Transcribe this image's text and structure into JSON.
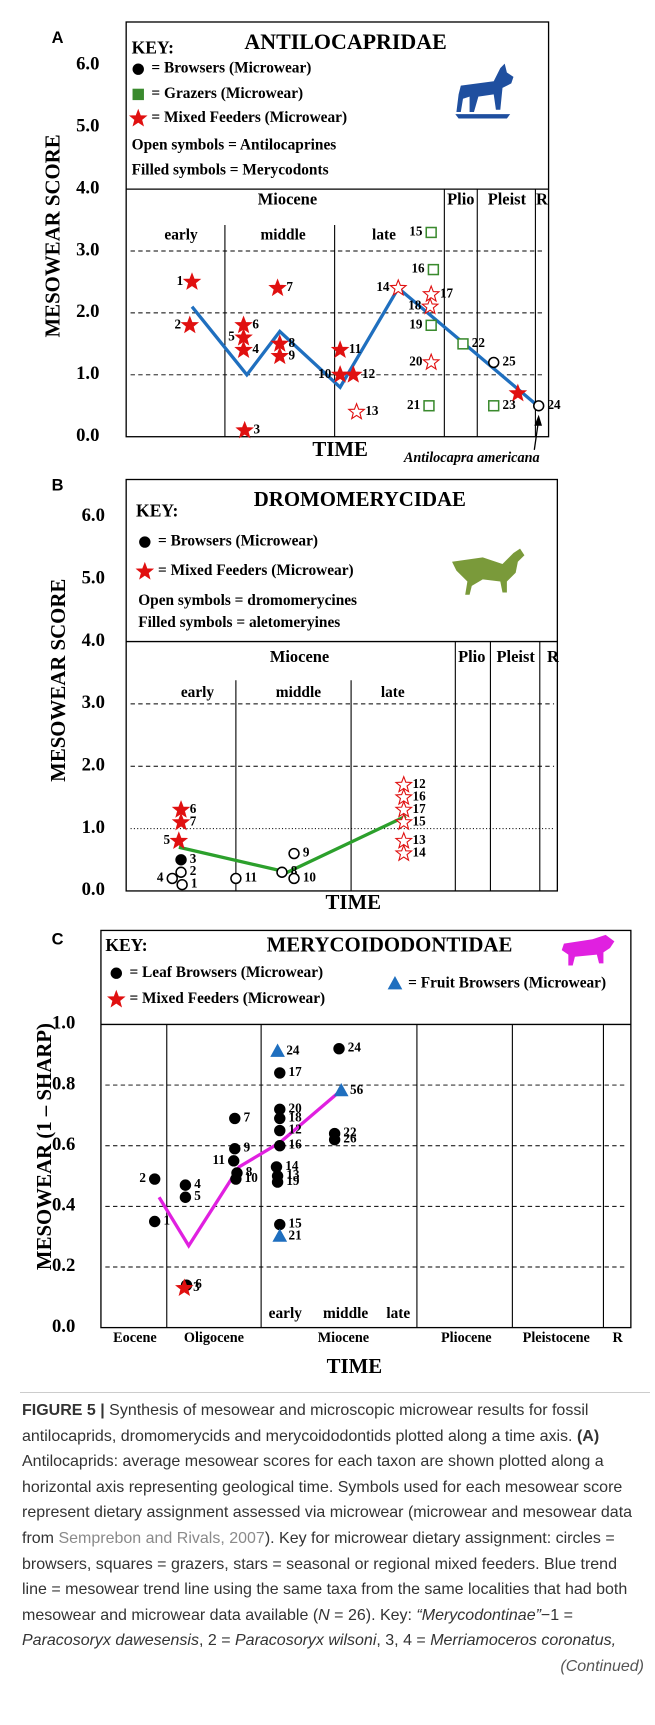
{
  "chart_data": [
    {
      "type": "scatter",
      "panel_label": "A",
      "title": "ANTILOCAPRIDAE",
      "key_title": "KEY:",
      "key_notes": [
        "Open symbols = Antilocaprines",
        "Filled symbols = Merycodonts"
      ],
      "y_label": "MESOWEAR  SCORE",
      "x_label": "TIME",
      "epochs": [
        "Miocene",
        "Plio",
        "Pleist",
        "R"
      ],
      "stages": [
        "early",
        "middle",
        "late"
      ],
      "ylim": [
        0,
        6.7
      ],
      "yticks": [
        {
          "value": 0,
          "label": "0.0"
        },
        {
          "value": 1,
          "label": "1.0",
          "grid": "dashed"
        },
        {
          "value": 2,
          "label": "2.0",
          "grid": "dashed"
        },
        {
          "value": 3,
          "label": "3.0",
          "grid": "dashed"
        },
        {
          "value": 4,
          "label": "4.0",
          "grid": "solid"
        },
        {
          "value": 5,
          "label": "5.0"
        },
        {
          "value": 6,
          "label": "6.0"
        }
      ],
      "series": [
        {
          "name": "= Browsers (Microwear)",
          "marker": "circle",
          "color": "#000000",
          "labels": [
            "24",
            "25"
          ],
          "values": [
            0.5,
            1.2
          ],
          "filled": [
            false,
            false
          ]
        },
        {
          "name": "= Grazers (Microwear)",
          "marker": "square",
          "color": "#3a8a2e",
          "labels": [
            "15",
            "16",
            "19",
            "21",
            "22",
            "23"
          ],
          "values": [
            3.3,
            2.7,
            1.8,
            0.5,
            1.5,
            0.5
          ],
          "filled": [
            false,
            false,
            false,
            false,
            false,
            false
          ]
        },
        {
          "name": "= Mixed Feeders (Microwear)",
          "marker": "star",
          "color": "#e01010",
          "labels": [
            "1",
            "2",
            "3",
            "4",
            "5",
            "6",
            "7",
            "8",
            "9",
            "10",
            "11",
            "12",
            "13",
            "14",
            "17",
            "18",
            "20",
            null
          ],
          "values": [
            2.5,
            1.8,
            0.1,
            1.4,
            1.6,
            1.8,
            2.4,
            1.5,
            1.3,
            1.0,
            1.4,
            1.0,
            0.4,
            2.4,
            2.3,
            2.1,
            1.2,
            0.7
          ],
          "filled": [
            true,
            true,
            true,
            true,
            true,
            true,
            true,
            true,
            true,
            true,
            true,
            true,
            false,
            false,
            false,
            false,
            false,
            true
          ]
        }
      ],
      "trend": {
        "color": "#1f6fbf",
        "values": [
          2.1,
          1.0,
          1.7,
          0.8,
          2.4,
          1.4,
          0.5
        ]
      },
      "annotation": "Antilocapra americana"
    },
    {
      "type": "scatter",
      "panel_label": "B",
      "title": "DROMOMERYCIDAE",
      "key_title": "KEY:",
      "key_notes": [
        "Open symbols = dromomerycines",
        "Filled symbols = aletomeryines"
      ],
      "y_label": "MESOWEAR  SCORE",
      "x_label": "TIME",
      "epochs": [
        "Miocene",
        "Plio",
        "Pleist",
        "R"
      ],
      "stages": [
        "early",
        "middle",
        "late"
      ],
      "ylim": [
        0,
        6.6
      ],
      "yticks": [
        {
          "value": 0,
          "label": "0.0"
        },
        {
          "value": 1,
          "label": "1.0",
          "grid": "dotted"
        },
        {
          "value": 2,
          "label": "2.0",
          "grid": "dashed"
        },
        {
          "value": 3,
          "label": "3.0",
          "grid": "dashed"
        },
        {
          "value": 4,
          "label": "4.0",
          "grid": "solid"
        },
        {
          "value": 5,
          "label": "5.0"
        },
        {
          "value": 6,
          "label": "6.0"
        }
      ],
      "series": [
        {
          "name": "= Browsers (Microwear)",
          "marker": "circle",
          "color": "#000000",
          "labels": [
            "3",
            "2",
            "4",
            "1",
            "11",
            "9",
            "8",
            "10"
          ],
          "values": [
            0.5,
            0.3,
            0.2,
            0.1,
            0.2,
            0.6,
            0.3,
            0.2
          ],
          "filled": [
            true,
            false,
            false,
            false,
            false,
            false,
            false,
            false
          ]
        },
        {
          "name": "= Mixed Feeders (Microwear)",
          "marker": "star",
          "color": "#e01010",
          "labels": [
            "6",
            "7",
            "5",
            "12",
            "16",
            "17",
            "15",
            "13",
            "14"
          ],
          "values": [
            1.3,
            1.1,
            0.8,
            1.7,
            1.5,
            1.3,
            1.1,
            0.8,
            0.6
          ],
          "filled": [
            true,
            true,
            true,
            false,
            false,
            false,
            false,
            false,
            false
          ]
        }
      ],
      "trend": {
        "color": "#2ca02c",
        "values": [
          0.7,
          0.3,
          1.2
        ]
      }
    },
    {
      "type": "scatter",
      "panel_label": "C",
      "title": "MERYCOIDODONTIDAE",
      "key_title": "KEY:",
      "key_notes": [],
      "y_label": "MESOWEAR  (1 – SHARP)",
      "x_label": "TIME",
      "epochs": [
        "Eocene",
        "Oligocene",
        "Miocene",
        "Pliocene",
        "Pleistocene",
        "R"
      ],
      "stages": [
        "early",
        "middle",
        "late"
      ],
      "ylim": [
        0,
        1.31
      ],
      "yticks": [
        {
          "value": 0,
          "label": "0.0"
        },
        {
          "value": 0.2,
          "label": "0.2",
          "grid": "dashed"
        },
        {
          "value": 0.4,
          "label": "0.4",
          "grid": "dashed"
        },
        {
          "value": 0.6,
          "label": "0.6",
          "grid": "dashed"
        },
        {
          "value": 0.8,
          "label": "0.8",
          "grid": "dashed"
        },
        {
          "value": 1,
          "label": "1.0",
          "grid": "solid"
        }
      ],
      "series": [
        {
          "name": "= Leaf Browsers (Microwear)",
          "marker": "circle",
          "color": "#000000",
          "labels": [
            "2",
            "1",
            "4",
            "5",
            "6",
            "7",
            "9",
            "11",
            "8",
            "10",
            "17",
            "20",
            "18",
            "12",
            "16",
            "14",
            "13",
            "19",
            "15",
            "24",
            "22",
            "26"
          ],
          "values": [
            0.49,
            0.35,
            0.47,
            0.43,
            0.14,
            0.69,
            0.59,
            0.55,
            0.51,
            0.49,
            0.84,
            0.72,
            0.69,
            0.65,
            0.6,
            0.53,
            0.5,
            0.48,
            0.34,
            0.92,
            0.64,
            0.62
          ],
          "filled": [
            true,
            true,
            true,
            true,
            true,
            true,
            true,
            true,
            true,
            true,
            true,
            true,
            true,
            true,
            true,
            true,
            true,
            true,
            true,
            true,
            true,
            true
          ]
        },
        {
          "name": "= Mixed Feeders (Microwear)",
          "marker": "star",
          "color": "#e01010",
          "labels": [
            "3"
          ],
          "values": [
            0.13
          ],
          "filled": [
            true
          ]
        },
        {
          "name": "= Fruit Browsers (Microwear)",
          "marker": "triangle",
          "color": "#1f6fbf",
          "labels": [
            "24",
            "21",
            "56"
          ],
          "values": [
            0.91,
            0.3,
            0.78
          ],
          "filled": [
            true,
            true,
            true
          ]
        }
      ],
      "trend": {
        "color": "#e020e0",
        "values": [
          0.43,
          0.27,
          0.53,
          0.61,
          0.78
        ]
      }
    }
  ],
  "caption": {
    "segments": [
      {
        "text": "FIGURE 5 |",
        "style": "bold"
      },
      {
        "text": " Synthesis of mesowear and microscopic microwear results for fossil antilocaprids, dromomerycids and merycoidodontids plotted along a time axis. ",
        "style": "plain"
      },
      {
        "text": "(A)",
        "style": "bold"
      },
      {
        "text": " Antilocaprids: average mesowear scores for each taxon are shown plotted along a horizontal axis representing geological time. Symbols used for each mesowear score represent dietary assignment assessed via microwear (microwear and mesowear data from ",
        "style": "plain"
      },
      {
        "text": "Semprebon and Rivals, 2007",
        "style": "link"
      },
      {
        "text": "). Key for microwear dietary assignment: circles = browsers, squares = grazers, stars = seasonal or regional mixed feeders. Blue trend line = mesowear trend line using the same taxa from the same localities that had both mesowear and microwear data available (",
        "style": "plain"
      },
      {
        "text": "N",
        "style": "italic"
      },
      {
        "text": " = 26). Key: ",
        "style": "plain"
      },
      {
        "text": "“Merycodontinae”",
        "style": "italic"
      },
      {
        "text": "−1 = ",
        "style": "plain"
      },
      {
        "text": "Paracosoryx dawesensis",
        "style": "italic"
      },
      {
        "text": ", 2 = ",
        "style": "plain"
      },
      {
        "text": "Paracosoryx wilsoni",
        "style": "italic"
      },
      {
        "text": ", 3, 4 = ",
        "style": "plain"
      },
      {
        "text": "Merriamoceros coronatus,",
        "style": "italic"
      },
      {
        "text": "(Continued)",
        "style": "continued"
      }
    ]
  }
}
